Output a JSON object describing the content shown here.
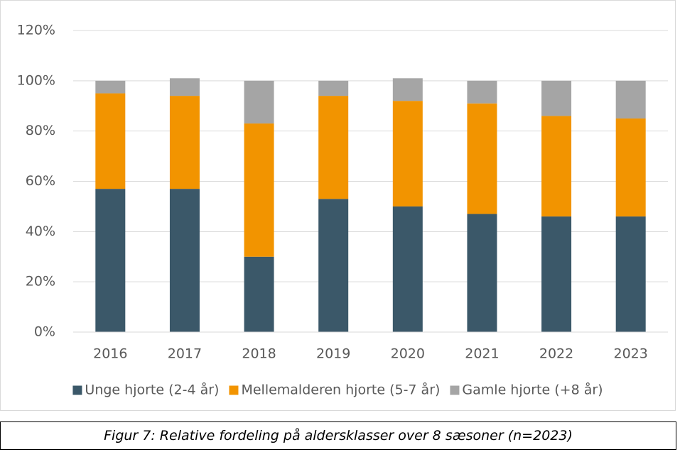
{
  "chart_data": {
    "type": "stacked_bar",
    "categories": [
      "2016",
      "2017",
      "2018",
      "2019",
      "2020",
      "2021",
      "2022",
      "2023"
    ],
    "series": [
      {
        "name": "Unge hjorte (2-4 år)",
        "color": "#3b5869",
        "values": [
          57,
          57,
          30,
          53,
          50,
          47,
          46,
          46
        ]
      },
      {
        "name": "Mellemalderen hjorte (5-7 år)",
        "color": "#f29400",
        "values": [
          38,
          37,
          53,
          41,
          42,
          44,
          40,
          39
        ]
      },
      {
        "name": "Gamle hjorte (+8 år)",
        "color": "#a5a5a5",
        "values": [
          5,
          7,
          17,
          6,
          9,
          9,
          14,
          15
        ]
      }
    ],
    "ylim": [
      0,
      120
    ],
    "yticks": [
      {
        "value": 0,
        "label": "0%"
      },
      {
        "value": 20,
        "label": "20%"
      },
      {
        "value": 40,
        "label": "40%"
      },
      {
        "value": 60,
        "label": "60%"
      },
      {
        "value": 80,
        "label": "80%"
      },
      {
        "value": 100,
        "label": "100%"
      },
      {
        "value": 120,
        "label": "120%"
      }
    ],
    "grid": true,
    "legend": "bottom",
    "caption": "Figur 7: Relative fordeling på aldersklasser over 8 sæsoner (n=2023)"
  }
}
